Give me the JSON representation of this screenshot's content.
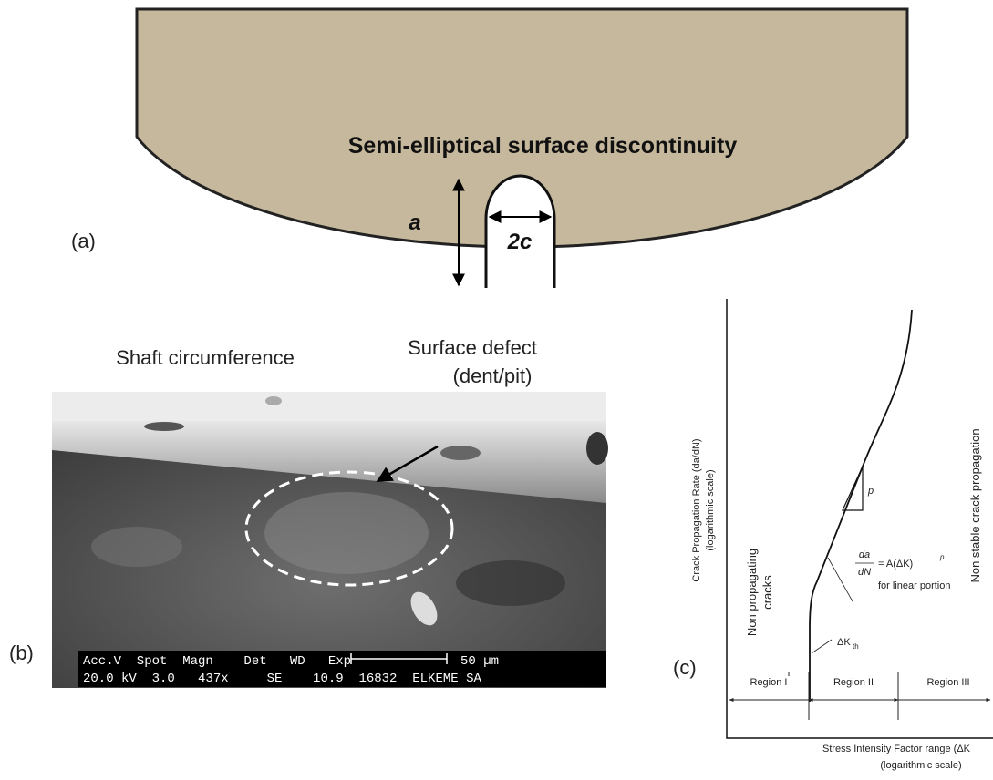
{
  "panel_a": {
    "label": "(a)",
    "title": "Semi-elliptical surface discontinuity",
    "depth": "a",
    "width": "2c"
  },
  "panel_b": {
    "label": "(b)",
    "caption_left": "Shaft circumference",
    "caption_defect": [
      "Surface defect",
      "(dent/pit)"
    ],
    "sem_bar": {
      "header": "Acc.V  Spot  Magn    Det   WD   Exp",
      "values": "20.0 kV  3.0   437x     SE    10.9  16832  ELKEME SA",
      "scale": "50 µm"
    }
  },
  "panel_c": {
    "label": "(c)",
    "y_label": [
      "Crack Propagation Rate (da/dN)",
      "(logarithmic scale)"
    ],
    "x_label": [
      "Stress Intensity Factor range (ΔK",
      "(logarithmic scale)"
    ],
    "left_note": [
      "Non propagating",
      "cracks"
    ],
    "right_note": "Non stable crack propagation",
    "slope": "p",
    "formula": {
      "num": "da",
      "den": "dN",
      "rhs": "= A(ΔK)",
      "exp": "p",
      "note": "for linear portion"
    },
    "threshold": {
      "main": "ΔK",
      "sub": "th"
    },
    "regions": [
      "Region I",
      "Region II",
      "Region III"
    ]
  }
}
